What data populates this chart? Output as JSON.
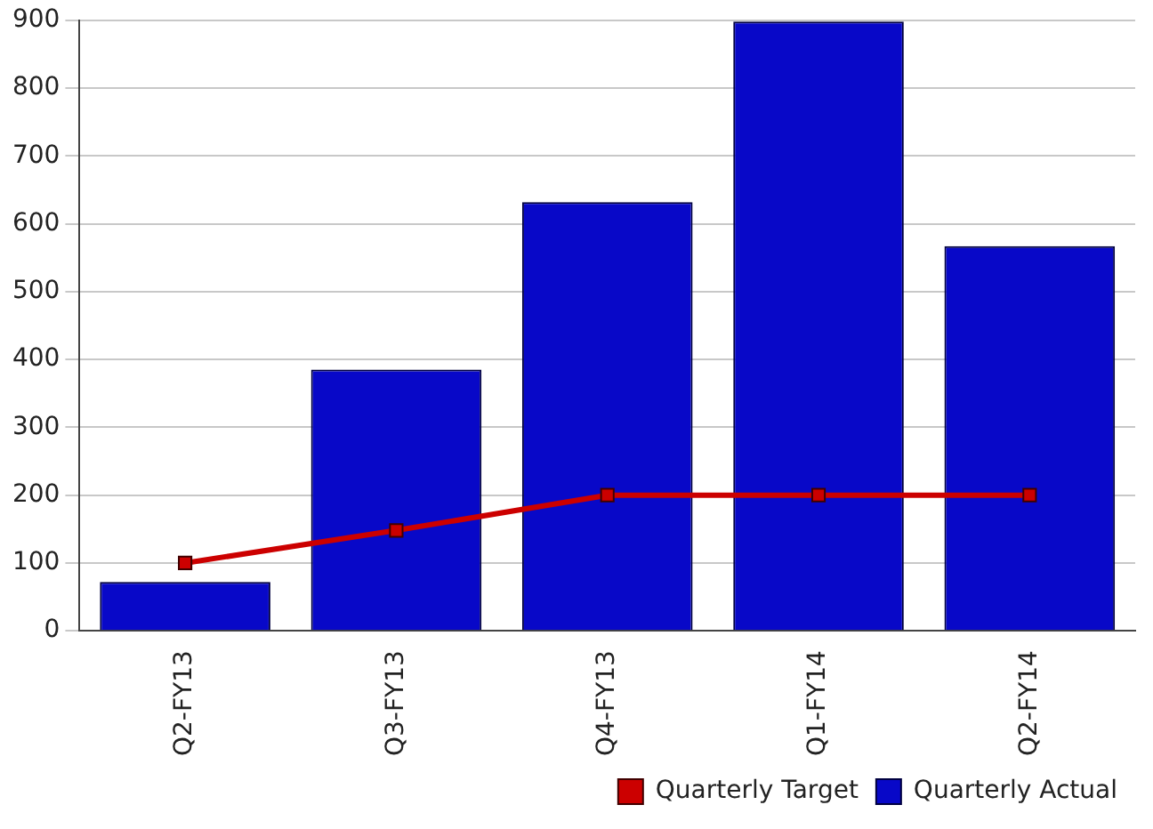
{
  "chart_data": {
    "type": "bar",
    "categories": [
      "Q2-FY13",
      "Q3-FY13",
      "Q4-FY13",
      "Q1-FY14",
      "Q2-FY14"
    ],
    "series": [
      {
        "name": "Quarterly Actual",
        "color": "#0808c8",
        "values": [
          72,
          385,
          632,
          898,
          567
        ]
      },
      {
        "name": "Quarterly Target",
        "type": "line",
        "color": "#cc0000",
        "values": [
          100,
          148,
          200,
          200,
          200
        ]
      }
    ],
    "ylim": [
      0,
      900
    ],
    "yticks": [
      0,
      100,
      200,
      300,
      400,
      500,
      600,
      700,
      800,
      900
    ],
    "grid": "y",
    "legend": "bottom right",
    "marker": "square"
  }
}
